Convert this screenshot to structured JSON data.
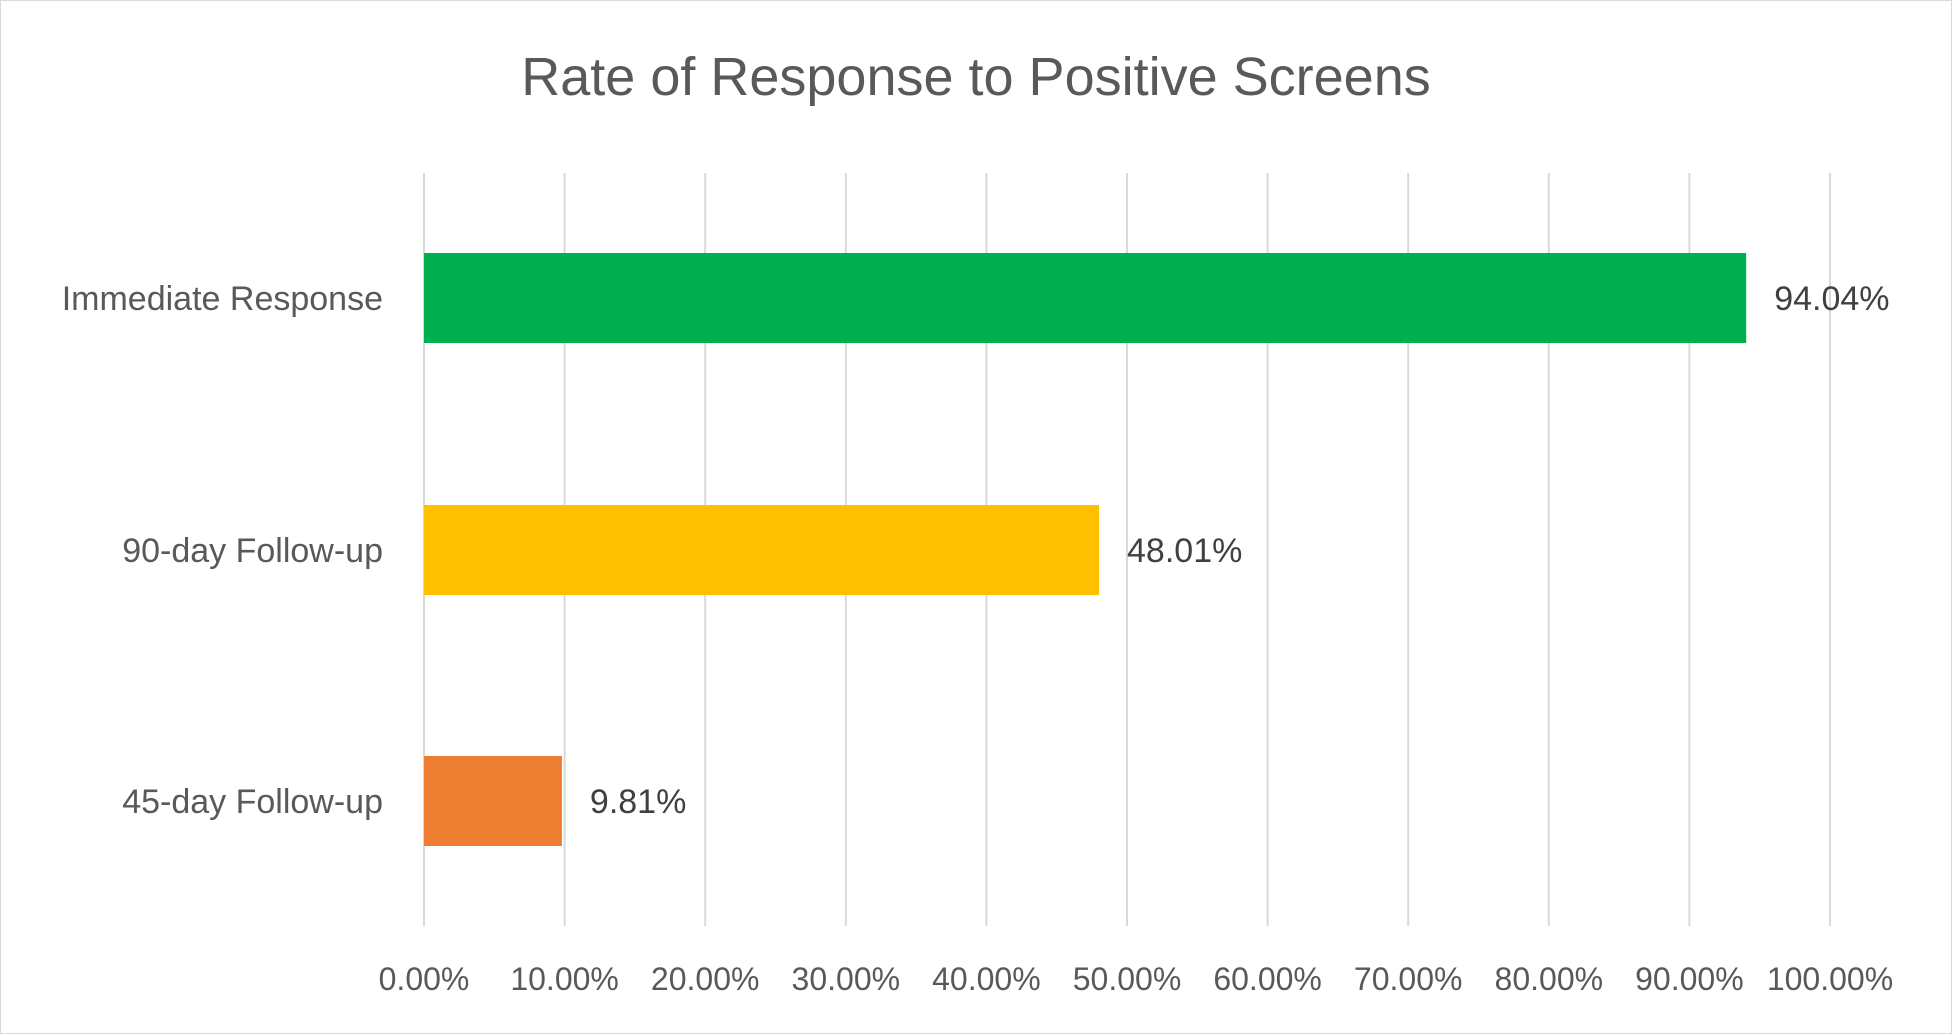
{
  "chart_data": {
    "type": "bar",
    "orientation": "horizontal",
    "title": "Rate of Response to Positive Screens",
    "xlabel": "",
    "ylabel": "",
    "categories": [
      "Immediate Response",
      "90-day Follow-up",
      "45-day Follow-up"
    ],
    "values": [
      94.04,
      48.01,
      9.81
    ],
    "data_labels": [
      "94.04%",
      "48.01%",
      "9.81%"
    ],
    "bar_colors": [
      "#00B050",
      "#FFC000",
      "#ED7D31"
    ],
    "xlim": [
      0,
      100
    ],
    "x_ticks": [
      0,
      10,
      20,
      30,
      40,
      50,
      60,
      70,
      80,
      90,
      100
    ],
    "x_tick_labels": [
      "0.00%",
      "10.00%",
      "20.00%",
      "30.00%",
      "40.00%",
      "50.00%",
      "60.00%",
      "70.00%",
      "80.00%",
      "90.00%",
      "100.00%"
    ],
    "grid": true,
    "legend": "none"
  }
}
